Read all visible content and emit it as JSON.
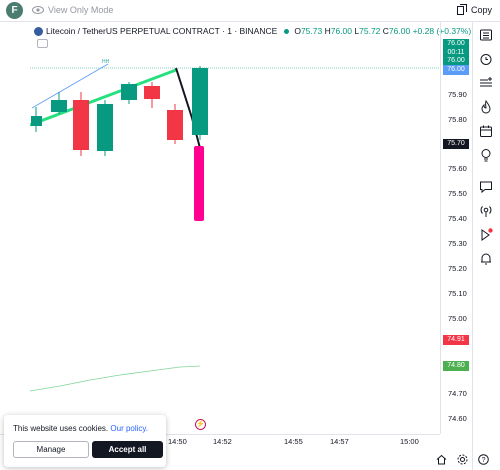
{
  "topbar": {
    "avatar_letter": "F",
    "view_only": "View Only Mode",
    "copy_label": "Copy"
  },
  "legend": {
    "symbol": "Litecoin / TetherUS PERPETUAL CONTRACT · 1 · BINANCE",
    "o_label": "O",
    "o": "75.73",
    "h_label": "H",
    "h": "76.00",
    "l_label": "L",
    "l": "75.72",
    "c_label": "C",
    "c": "76.00",
    "change": "+0.28 (+0.37%)"
  },
  "annotation": "HH",
  "price_axis": {
    "labels": [
      "75.90",
      "75.80",
      "75.60",
      "75.50",
      "75.40",
      "75.30",
      "75.20",
      "75.10",
      "75.00",
      "74.70",
      "74.60"
    ],
    "tags": [
      {
        "text": "76.00",
        "color": "#089981"
      },
      {
        "text": "00:11",
        "color": "#089981"
      },
      {
        "text": "76.00",
        "color": "#089981"
      },
      {
        "text": "76.00",
        "color": "#5b9cf6"
      },
      {
        "text": "75.70",
        "color": "#131722"
      },
      {
        "text": "74.91",
        "color": "#f23645"
      },
      {
        "text": "74.80",
        "color": "#4caf50"
      }
    ]
  },
  "time_axis": {
    "labels": [
      "14:50",
      "14:52",
      "14:55",
      "14:57",
      "15:00"
    ]
  },
  "cookie": {
    "text": "This website uses cookies.",
    "link": "Our policy.",
    "manage_label": "Manage",
    "accept_label": "Accept all"
  },
  "colors": {
    "up": "#089981",
    "down": "#f23645",
    "magenta": "#ff0090",
    "trend": "#26e07f"
  }
}
